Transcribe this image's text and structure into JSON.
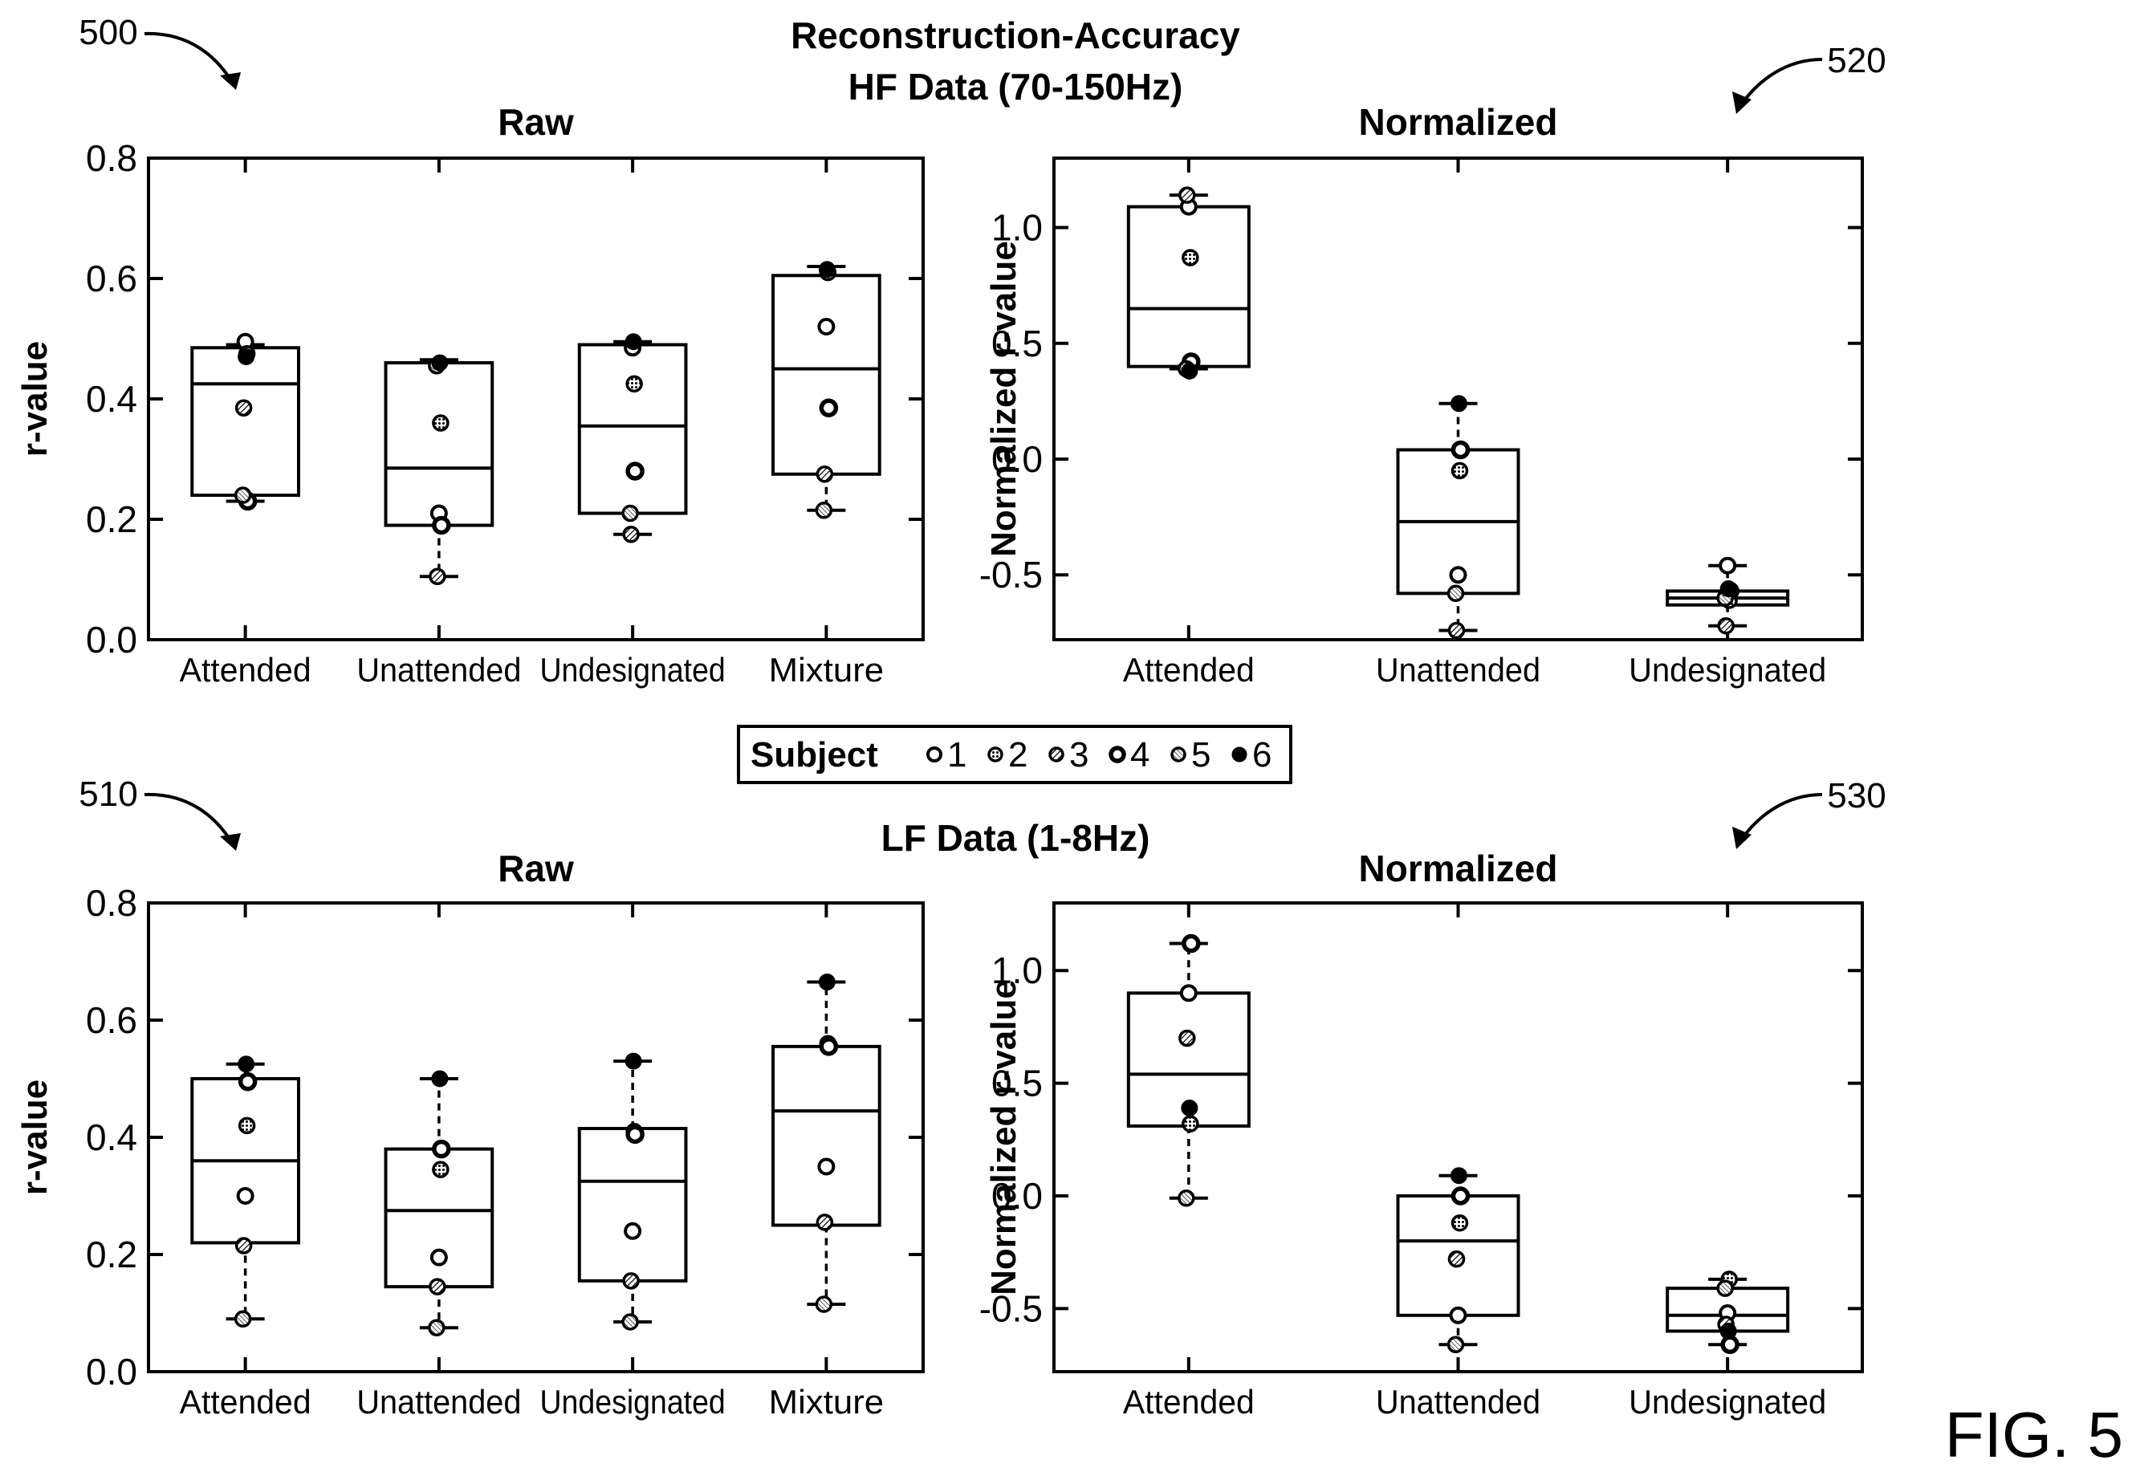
{
  "figure": {
    "title_line1": "Reconstruction-Accuracy",
    "title_line2": "HF Data (70-150Hz)",
    "lf_title": "LF Data (1-8Hz)",
    "fig_label": "FIG. 5",
    "ref_labels": [
      "500",
      "510",
      "520",
      "530"
    ]
  },
  "legend": {
    "label": "Subject",
    "subjects": [
      "1",
      "2",
      "3",
      "4",
      "5",
      "6"
    ]
  },
  "chart_data": [
    {
      "id": "500",
      "type": "box",
      "title": "Raw",
      "ylabel": "r-value",
      "ylim": [
        0,
        0.8
      ],
      "yticks": [
        "0.0",
        "0.2",
        "0.4",
        "0.6",
        "0.8"
      ],
      "categories": [
        "Attended",
        "Unattended",
        "Undesignated",
        "Mixture"
      ],
      "boxes": [
        {
          "q1": 0.24,
          "median": 0.425,
          "q3": 0.485,
          "whisker_low": 0.23,
          "whisker_high": 0.49
        },
        {
          "q1": 0.19,
          "median": 0.285,
          "q3": 0.46,
          "whisker_low": 0.105,
          "whisker_high": 0.465
        },
        {
          "q1": 0.21,
          "median": 0.355,
          "q3": 0.49,
          "whisker_low": 0.175,
          "whisker_high": 0.495
        },
        {
          "q1": 0.275,
          "median": 0.45,
          "q3": 0.605,
          "whisker_low": 0.215,
          "whisker_high": 0.62
        }
      ],
      "points": [
        [
          0.495,
          0.475,
          0.385,
          0.23,
          0.24,
          0.47
        ],
        [
          0.21,
          0.36,
          0.105,
          0.19,
          0.455,
          0.46
        ],
        [
          0.485,
          0.425,
          0.175,
          0.28,
          0.21,
          0.495
        ],
        [
          0.52,
          0.61,
          0.275,
          0.385,
          0.215,
          0.615
        ]
      ]
    },
    {
      "id": "520",
      "type": "box",
      "title": "Normalized",
      "ylabel": "Normalized r-value",
      "ylim": [
        -0.78,
        1.3
      ],
      "yticks": [
        "-0.5",
        "0.0",
        "0.5",
        "1.0"
      ],
      "ytick_values": [
        -0.5,
        0,
        0.5,
        1.0
      ],
      "categories": [
        "Attended",
        "Unattended",
        "Undesignated"
      ],
      "boxes": [
        {
          "q1": 0.4,
          "median": 0.65,
          "q3": 1.09,
          "whisker_low": 0.39,
          "whisker_high": 1.14
        },
        {
          "q1": -0.58,
          "median": -0.27,
          "q3": 0.04,
          "whisker_low": -0.74,
          "whisker_high": 0.24
        },
        {
          "q1": -0.63,
          "median": -0.6,
          "q3": -0.57,
          "whisker_low": -0.72,
          "whisker_high": -0.46
        }
      ],
      "points": [
        [
          1.09,
          0.87,
          1.14,
          0.42,
          0.39,
          0.38
        ],
        [
          -0.5,
          -0.05,
          -0.74,
          0.04,
          -0.58,
          0.24
        ],
        [
          -0.46,
          -0.61,
          -0.72,
          -0.57,
          -0.6,
          -0.56
        ]
      ]
    },
    {
      "id": "510",
      "type": "box",
      "title": "Raw",
      "ylabel": "r-value",
      "ylim": [
        0,
        0.8
      ],
      "yticks": [
        "0.0",
        "0.2",
        "0.4",
        "0.6",
        "0.8"
      ],
      "categories": [
        "Attended",
        "Unattended",
        "Undesignated",
        "Mixture"
      ],
      "boxes": [
        {
          "q1": 0.22,
          "median": 0.36,
          "q3": 0.5,
          "whisker_low": 0.09,
          "whisker_high": 0.525
        },
        {
          "q1": 0.145,
          "median": 0.275,
          "q3": 0.38,
          "whisker_low": 0.075,
          "whisker_high": 0.5
        },
        {
          "q1": 0.155,
          "median": 0.325,
          "q3": 0.415,
          "whisker_low": 0.085,
          "whisker_high": 0.53
        },
        {
          "q1": 0.25,
          "median": 0.445,
          "q3": 0.555,
          "whisker_low": 0.115,
          "whisker_high": 0.665
        }
      ],
      "points": [
        [
          0.3,
          0.42,
          0.215,
          0.495,
          0.09,
          0.525
        ],
        [
          0.195,
          0.345,
          0.145,
          0.38,
          0.075,
          0.5
        ],
        [
          0.24,
          0.41,
          0.155,
          0.405,
          0.085,
          0.53
        ],
        [
          0.35,
          0.56,
          0.255,
          0.555,
          0.115,
          0.665
        ]
      ]
    },
    {
      "id": "530",
      "type": "box",
      "title": "Normalized",
      "ylabel": "Normalized r-value",
      "ylim": [
        -0.78,
        1.3
      ],
      "yticks": [
        "-0.5",
        "0.0",
        "0.5",
        "1.0"
      ],
      "ytick_values": [
        -0.5,
        0,
        0.5,
        1.0
      ],
      "categories": [
        "Attended",
        "Unattended",
        "Undesignated"
      ],
      "boxes": [
        {
          "q1": 0.31,
          "median": 0.54,
          "q3": 0.9,
          "whisker_low": -0.01,
          "whisker_high": 1.12
        },
        {
          "q1": -0.53,
          "median": -0.2,
          "q3": 0.0,
          "whisker_low": -0.66,
          "whisker_high": 0.09
        },
        {
          "q1": -0.6,
          "median": -0.53,
          "q3": -0.41,
          "whisker_low": -0.66,
          "whisker_high": -0.37
        }
      ],
      "points": [
        [
          0.9,
          0.32,
          0.7,
          1.12,
          -0.01,
          0.39
        ],
        [
          -0.53,
          -0.12,
          -0.28,
          0.0,
          -0.66,
          0.09
        ],
        [
          -0.52,
          -0.37,
          -0.57,
          -0.66,
          -0.41,
          -0.6
        ]
      ]
    }
  ]
}
